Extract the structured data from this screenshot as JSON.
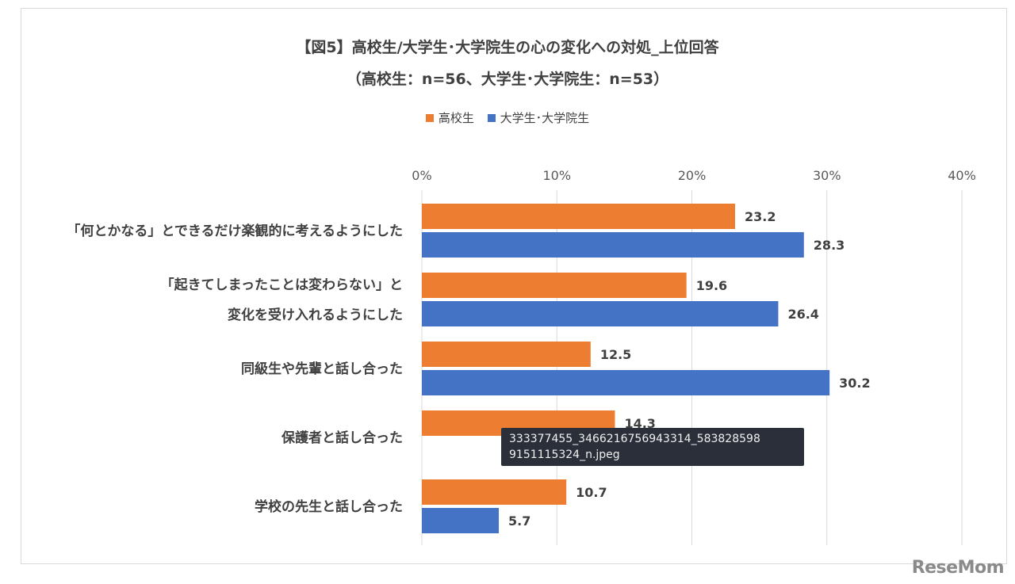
{
  "title_line1": "【図5】高校生/大学生･大学院生の心の変化への対処_上位回答",
  "title_line2": "（高校生：n=56、大学生･大学院生：n=53）",
  "colors": {
    "series1": "#ed7d31",
    "series2": "#4472c4",
    "grid": "#d9d9d9"
  },
  "chart_data": {
    "type": "bar",
    "orientation": "horizontal",
    "categories": [
      [
        "「何とかなる」とできるだけ楽観的に考えるようにした"
      ],
      [
        "「起きてしまったことは変わらない」と",
        "変化を受け入れるようにした"
      ],
      [
        "同級生や先輩と話し合った"
      ],
      [
        "保護者と話し合った"
      ],
      [
        "学校の先生と話し合った"
      ]
    ],
    "series": [
      {
        "name": "高校生",
        "values": [
          23.2,
          19.6,
          12.5,
          14.3,
          10.7
        ],
        "labels": [
          "23.2",
          "19.6",
          "12.5",
          "14.3",
          "10.7"
        ]
      },
      {
        "name": "大学生･大学院生",
        "values": [
          28.3,
          26.4,
          30.2,
          null,
          5.7
        ],
        "labels": [
          "28.3",
          "26.4",
          "30.2",
          "",
          "5.7"
        ]
      }
    ],
    "xlim": [
      0,
      40
    ],
    "xticks": [
      "0%",
      "10%",
      "20%",
      "30%",
      "40%"
    ],
    "grid": true,
    "legend": "top-center"
  },
  "tooltip": {
    "line1": "333377455_3466216756943314_583828598",
    "line2": "9151115324_n.jpeg"
  },
  "logo": "ReseMom"
}
